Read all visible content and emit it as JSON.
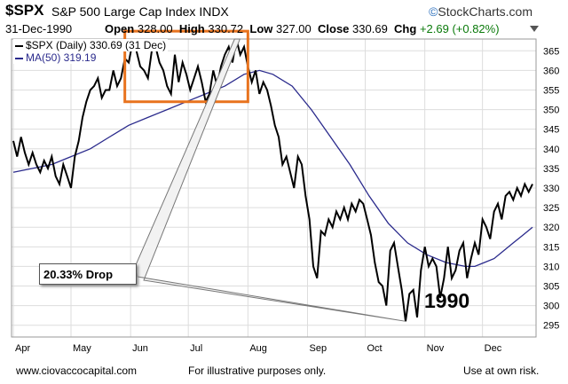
{
  "header": {
    "symbol": "$SPX",
    "name": "S&P 500 Large Cap Index",
    "exchange": "INDX",
    "logo": "StockCharts.com",
    "date": "31-Dec-1990",
    "open_label": "Open",
    "open": "328.00",
    "high_label": "High",
    "high": "330.72",
    "low_label": "Low",
    "low": "327.00",
    "close_label": "Close",
    "close": "330.69",
    "chg_label": "Chg",
    "chg": "+2.69 (+0.82%)"
  },
  "legend": {
    "series": "$SPX (Daily) 330.69 (31 Dec)",
    "ma": "MA(50) 319.19"
  },
  "annotations": {
    "drop_label": "20.33% Drop",
    "year": "1990"
  },
  "footer": {
    "site": "www.ciovaccocapital.com",
    "note": "For illustrative purposes only.",
    "risk": "Use at own risk."
  },
  "colors": {
    "price": "#000000",
    "ma": "#2a2a8c",
    "box": "#e8731e",
    "grid": "#dddddd"
  },
  "chart_data": {
    "type": "line",
    "title": "$SPX S&P 500 Large Cap Index INDX",
    "ylim": [
      292,
      368
    ],
    "yticks": [
      295,
      300,
      305,
      310,
      315,
      320,
      325,
      330,
      335,
      340,
      345,
      350,
      355,
      360,
      365
    ],
    "xlim": [
      0,
      270
    ],
    "xticks": [
      {
        "label": "Apr",
        "t": 0
      },
      {
        "label": "May",
        "t": 30
      },
      {
        "label": "Jun",
        "t": 61
      },
      {
        "label": "Jul",
        "t": 91
      },
      {
        "label": "Aug",
        "t": 122
      },
      {
        "label": "Sep",
        "t": 153
      },
      {
        "label": "Oct",
        "t": 183
      },
      {
        "label": "Nov",
        "t": 214
      },
      {
        "label": "Dec",
        "t": 244
      }
    ],
    "series": [
      {
        "name": "$SPX (Daily)",
        "points": [
          [
            0,
            342
          ],
          [
            2,
            338
          ],
          [
            4,
            343
          ],
          [
            6,
            339
          ],
          [
            8,
            336
          ],
          [
            10,
            339
          ],
          [
            12,
            336
          ],
          [
            14,
            334
          ],
          [
            16,
            337
          ],
          [
            18,
            335
          ],
          [
            20,
            338
          ],
          [
            22,
            333
          ],
          [
            24,
            331
          ],
          [
            26,
            336
          ],
          [
            28,
            333
          ],
          [
            30,
            330
          ],
          [
            32,
            338
          ],
          [
            34,
            342
          ],
          [
            36,
            348
          ],
          [
            38,
            352
          ],
          [
            40,
            355
          ],
          [
            42,
            356
          ],
          [
            44,
            358
          ],
          [
            46,
            353
          ],
          [
            48,
            355
          ],
          [
            50,
            355
          ],
          [
            52,
            360
          ],
          [
            54,
            356
          ],
          [
            56,
            358
          ],
          [
            58,
            363
          ],
          [
            60,
            362
          ],
          [
            62,
            367
          ],
          [
            64,
            365
          ],
          [
            66,
            361
          ],
          [
            68,
            360
          ],
          [
            70,
            358
          ],
          [
            72,
            365
          ],
          [
            74,
            366
          ],
          [
            76,
            362
          ],
          [
            78,
            360
          ],
          [
            80,
            356
          ],
          [
            82,
            354
          ],
          [
            84,
            364
          ],
          [
            86,
            357
          ],
          [
            88,
            362
          ],
          [
            90,
            359
          ],
          [
            92,
            355
          ],
          [
            94,
            358
          ],
          [
            96,
            361
          ],
          [
            98,
            357
          ],
          [
            100,
            352
          ],
          [
            102,
            354
          ],
          [
            104,
            360
          ],
          [
            106,
            356
          ],
          [
            108,
            361
          ],
          [
            110,
            364
          ],
          [
            112,
            366
          ],
          [
            114,
            362
          ],
          [
            116,
            368
          ],
          [
            118,
            364
          ],
          [
            120,
            366
          ],
          [
            122,
            361
          ],
          [
            124,
            357
          ],
          [
            126,
            360
          ],
          [
            128,
            354
          ],
          [
            130,
            357
          ],
          [
            132,
            355
          ],
          [
            134,
            351
          ],
          [
            136,
            346
          ],
          [
            138,
            343
          ],
          [
            140,
            336
          ],
          [
            142,
            338
          ],
          [
            144,
            334
          ],
          [
            146,
            330
          ],
          [
            148,
            338
          ],
          [
            150,
            336
          ],
          [
            152,
            328
          ],
          [
            154,
            322
          ],
          [
            156,
            310
          ],
          [
            158,
            307
          ],
          [
            160,
            319
          ],
          [
            162,
            318
          ],
          [
            164,
            322
          ],
          [
            166,
            320
          ],
          [
            168,
            324
          ],
          [
            170,
            322
          ],
          [
            172,
            325
          ],
          [
            174,
            322
          ],
          [
            176,
            326
          ],
          [
            178,
            324
          ],
          [
            180,
            327
          ],
          [
            182,
            326
          ],
          [
            184,
            322
          ],
          [
            186,
            318
          ],
          [
            188,
            311
          ],
          [
            190,
            306
          ],
          [
            192,
            305
          ],
          [
            194,
            300
          ],
          [
            196,
            314
          ],
          [
            198,
            316
          ],
          [
            200,
            310
          ],
          [
            202,
            304
          ],
          [
            204,
            296
          ],
          [
            206,
            303
          ],
          [
            208,
            304
          ],
          [
            210,
            297
          ],
          [
            212,
            309
          ],
          [
            214,
            315
          ],
          [
            216,
            310
          ],
          [
            218,
            312
          ],
          [
            220,
            310
          ],
          [
            222,
            302
          ],
          [
            224,
            307
          ],
          [
            226,
            315
          ],
          [
            228,
            307
          ],
          [
            230,
            309
          ],
          [
            232,
            314
          ],
          [
            234,
            316
          ],
          [
            236,
            307
          ],
          [
            238,
            312
          ],
          [
            240,
            316
          ],
          [
            242,
            313
          ],
          [
            244,
            322
          ],
          [
            246,
            320
          ],
          [
            248,
            317
          ],
          [
            250,
            324
          ],
          [
            252,
            326
          ],
          [
            254,
            322
          ],
          [
            256,
            328
          ],
          [
            258,
            329
          ],
          [
            260,
            327
          ],
          [
            262,
            330
          ],
          [
            264,
            328
          ],
          [
            266,
            331
          ],
          [
            268,
            329
          ],
          [
            270,
            331
          ]
        ]
      },
      {
        "name": "MA(50)",
        "points": [
          [
            0,
            334
          ],
          [
            10,
            335
          ],
          [
            20,
            336
          ],
          [
            30,
            338
          ],
          [
            40,
            340
          ],
          [
            50,
            343
          ],
          [
            60,
            346
          ],
          [
            70,
            348
          ],
          [
            80,
            350
          ],
          [
            90,
            352
          ],
          [
            100,
            354
          ],
          [
            110,
            356
          ],
          [
            120,
            359
          ],
          [
            128,
            360
          ],
          [
            135,
            359
          ],
          [
            145,
            356
          ],
          [
            155,
            350
          ],
          [
            165,
            343
          ],
          [
            175,
            336
          ],
          [
            185,
            328
          ],
          [
            195,
            321
          ],
          [
            205,
            316
          ],
          [
            215,
            313
          ],
          [
            225,
            311
          ],
          [
            235,
            310
          ],
          [
            240,
            310
          ],
          [
            245,
            311
          ],
          [
            250,
            312
          ],
          [
            255,
            314
          ],
          [
            260,
            316
          ],
          [
            265,
            318
          ],
          [
            270,
            320
          ]
        ]
      }
    ],
    "highlight": {
      "t_range": [
        58,
        122
      ],
      "y_range": [
        352,
        370
      ]
    },
    "drop_line": {
      "from": [
        116,
        368
      ],
      "to": [
        204,
        296
      ]
    }
  }
}
